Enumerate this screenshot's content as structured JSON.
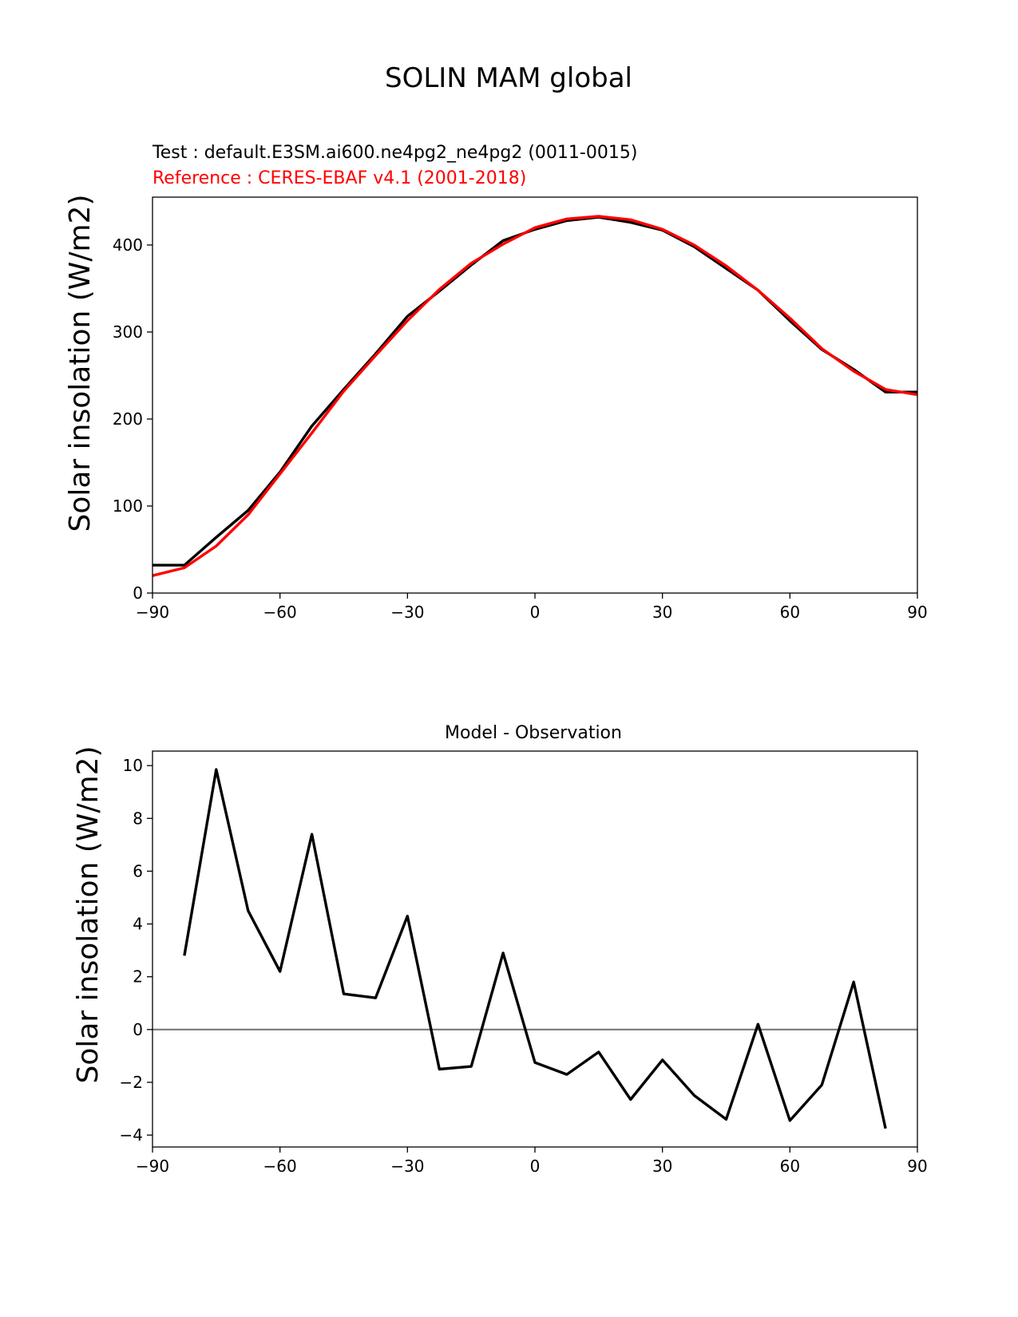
{
  "figure": {
    "suptitle": "SOLIN MAM global",
    "test_label": "Test : default.E3SM.ai600.ne4pg2_ne4pg2 (0011-0015)",
    "reference_label": "Reference : CERES-EBAF v4.1 (2001-2018)",
    "diff_title": "Model - Observation",
    "ylabel": "Solar insolation (W/m2)",
    "colors": {
      "test": "#000000",
      "reference": "#ff0000",
      "zero_line": "#808080"
    }
  },
  "chart_data": [
    {
      "type": "line",
      "title": "SOLIN MAM global",
      "xlabel": "",
      "ylabel": "Solar insolation (W/m2)",
      "xlim": [
        -90,
        90
      ],
      "ylim": [
        0,
        455
      ],
      "xticks": [
        -90,
        -60,
        -30,
        0,
        30,
        60,
        90
      ],
      "xtick_labels": [
        "−90",
        "−60",
        "−30",
        "0",
        "30",
        "60",
        "90"
      ],
      "yticks": [
        0,
        100,
        200,
        300,
        400
      ],
      "ytick_labels": [
        "0",
        "100",
        "200",
        "300",
        "400"
      ],
      "series": [
        {
          "name": "Test : default.E3SM.ai600.ne4pg2_ne4pg2 (0011-0015)",
          "color": "#000000",
          "x": [
            -90,
            -82.5,
            -75,
            -67.5,
            -60,
            -52.5,
            -45,
            -37.5,
            -30,
            -22.5,
            -15,
            -7.5,
            0,
            7.5,
            15,
            22.5,
            30,
            37.5,
            45,
            52.5,
            60,
            67.5,
            75,
            82.5,
            90
          ],
          "y": [
            32,
            32,
            64,
            95,
            139,
            192,
            234,
            275,
            318,
            347,
            377,
            405,
            418,
            428,
            432,
            426,
            417,
            398,
            373,
            348,
            313,
            280,
            257,
            231,
            231
          ]
        },
        {
          "name": "Reference : CERES-EBAF v4.1 (2001-2018)",
          "color": "#ff0000",
          "x": [
            -90,
            -82.5,
            -75,
            -67.5,
            -60,
            -52.5,
            -45,
            -37.5,
            -30,
            -22.5,
            -15,
            -7.5,
            0,
            7.5,
            15,
            22.5,
            30,
            37.5,
            45,
            52.5,
            60,
            67.5,
            75,
            82.5,
            90
          ],
          "y": [
            20,
            29,
            54,
            90,
            137,
            184,
            232,
            273,
            313,
            349,
            379,
            401,
            420,
            430,
            433,
            429,
            418,
            400,
            376,
            348,
            316,
            281,
            255,
            234,
            228
          ]
        }
      ]
    },
    {
      "type": "line",
      "title": "Model - Observation",
      "xlabel": "",
      "ylabel": "Solar insolation (W/m2)",
      "xlim": [
        -90,
        90
      ],
      "ylim": [
        -4.45,
        10.55
      ],
      "xticks": [
        -90,
        -60,
        -30,
        0,
        30,
        60,
        90
      ],
      "xtick_labels": [
        "−90",
        "−60",
        "−30",
        "0",
        "30",
        "60",
        "90"
      ],
      "yticks": [
        -4,
        -2,
        0,
        2,
        4,
        6,
        8,
        10
      ],
      "ytick_labels": [
        "−4",
        "−2",
        "0",
        "2",
        "4",
        "6",
        "8",
        "10"
      ],
      "zero_line": 0,
      "series": [
        {
          "name": "Model - Observation",
          "color": "#000000",
          "x": [
            -82.5,
            -75,
            -67.5,
            -60,
            -52.5,
            -45,
            -37.5,
            -30,
            -22.5,
            -15,
            -7.5,
            0,
            7.5,
            15,
            22.5,
            30,
            37.5,
            45,
            52.5,
            60,
            67.5,
            75,
            82.5
          ],
          "y": [
            2.8,
            9.85,
            4.5,
            2.2,
            7.4,
            1.35,
            1.2,
            4.3,
            -1.5,
            -1.4,
            2.9,
            -1.25,
            -1.7,
            -0.85,
            -2.65,
            -1.15,
            -2.5,
            -3.4,
            0.2,
            -3.45,
            -2.1,
            1.8,
            -3.75
          ]
        }
      ]
    }
  ]
}
